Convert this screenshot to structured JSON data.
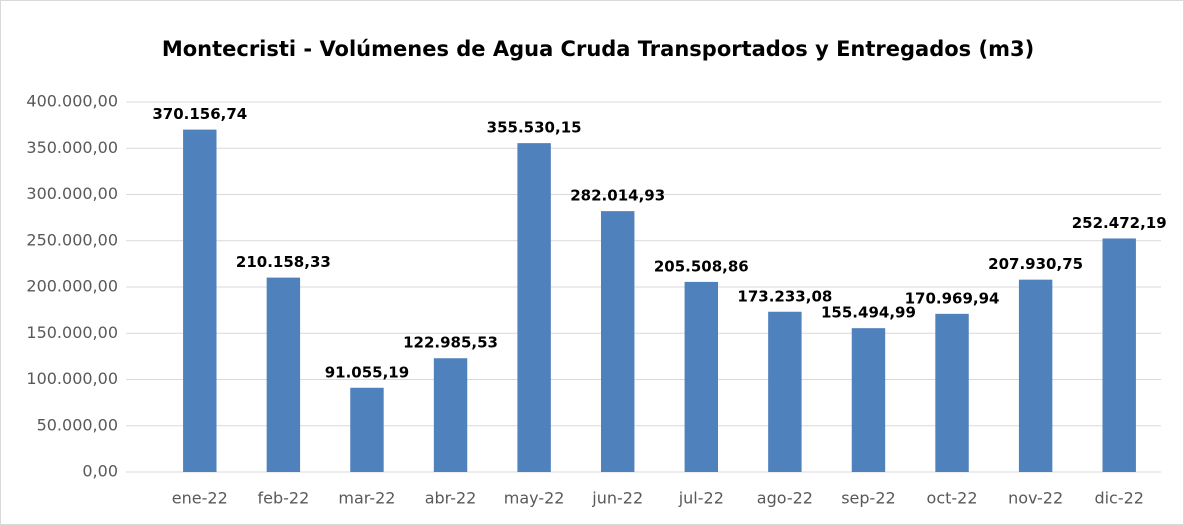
{
  "chart_data": {
    "type": "bar",
    "title": "Montecristi - Volúmenes de Agua Cruda Transportados y Entregados  (m3)",
    "categories": [
      "ene-22",
      "feb-22",
      "mar-22",
      "abr-22",
      "may-22",
      "jun-22",
      "jul-22",
      "ago-22",
      "sep-22",
      "oct-22",
      "nov-22",
      "dic-22"
    ],
    "values": [
      370156.74,
      210158.33,
      91055.19,
      122985.53,
      355530.15,
      282014.93,
      205508.86,
      173233.08,
      155494.99,
      170969.94,
      207930.75,
      252472.19
    ],
    "value_labels": [
      "370.156,74",
      "210.158,33",
      "91.055,19",
      "122.985,53",
      "355.530,15",
      "282.014,93",
      "205.508,86",
      "173.233,08",
      "155.494,99",
      "170.969,94",
      "207.930,75",
      "252.472,19"
    ],
    "color": "#4f81bd",
    "ylim": [
      0,
      400000
    ],
    "yticks": [
      {
        "value": 0,
        "label": "0,00"
      },
      {
        "value": 50000,
        "label": "50.000,00"
      },
      {
        "value": 100000,
        "label": "100.000,00"
      },
      {
        "value": 150000,
        "label": "150.000,00"
      },
      {
        "value": 200000,
        "label": "200.000,00"
      },
      {
        "value": 250000,
        "label": "250.000,00"
      },
      {
        "value": 300000,
        "label": "300.000,00"
      },
      {
        "value": 350000,
        "label": "350.000,00"
      },
      {
        "value": 400000,
        "label": "400.000,00"
      }
    ],
    "grid": true
  }
}
